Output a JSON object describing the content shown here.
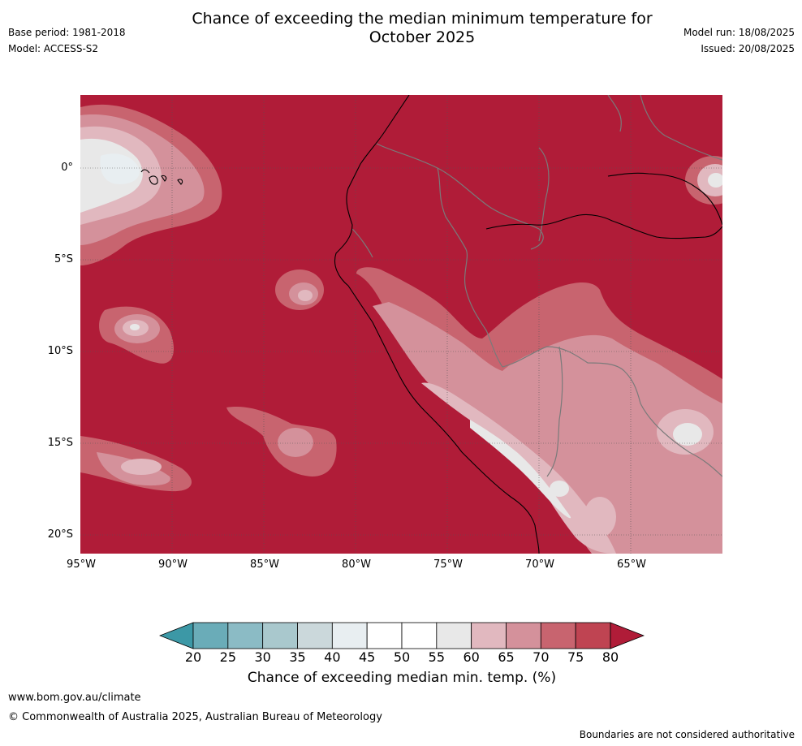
{
  "title_line1": "Chance of exceeding the median minimum temperature for",
  "title_line2": "October 2025",
  "base_period": "Base period: 1981-2018",
  "model": "Model: ACCESS-S2",
  "model_run": "Model run: 18/08/2025",
  "issued": "Issued: 20/08/2025",
  "lat_ticks": [
    "0°",
    "5°S",
    "10°S",
    "15°S",
    "20°S"
  ],
  "lon_ticks": [
    "95°W",
    "90°W",
    "85°W",
    "80°W",
    "75°W",
    "70°W",
    "65°W"
  ],
  "colorbar": {
    "ticks": [
      "20",
      "25",
      "30",
      "35",
      "40",
      "45",
      "50",
      "55",
      "60",
      "65",
      "70",
      "75",
      "80"
    ],
    "colors": [
      "#3c98a6",
      "#6aacb8",
      "#8bbbc5",
      "#a9c8cd",
      "#cbd8db",
      "#e8eef1",
      "#ffffff",
      "#ffffff",
      "#e8e8e8",
      "#e1b8bf",
      "#d4919b",
      "#c8646f",
      "#bf4452",
      "#b01c38"
    ],
    "label": "Chance of exceeding median min. temp. (%)"
  },
  "website": "www.bom.gov.au/climate",
  "copyright": "© Commonwealth of Australia 2025, Australian Bureau of Meteorology",
  "disclaimer": "Boundaries are not considered authoritative"
}
